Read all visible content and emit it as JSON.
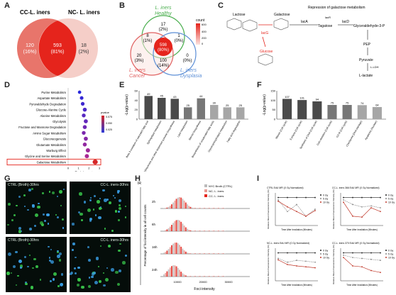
{
  "panels": {
    "a": "A",
    "b": "B",
    "c": "C",
    "d": "D",
    "e": "E",
    "f": "F",
    "g": "G",
    "h": "H",
    "i": "I"
  },
  "venn_a": {
    "left_title": "CC-L. iners",
    "right_title": "NC- L. iners",
    "left_only": {
      "count": "120",
      "pct": "(16%)"
    },
    "shared": {
      "count": "593",
      "pct": "(81%)"
    },
    "right_only": {
      "count": "18",
      "pct": "(2%)"
    }
  },
  "venn_b": {
    "healthy_label": "L. iners",
    "healthy_sub": "Healthy",
    "cancer_label": "L. iners",
    "cancer_sub": "Cancer",
    "dysplasia_label": "L. iners",
    "dysplasia_sub": "Dysplasia",
    "regions": {
      "healthy_only": [
        "17",
        "(2%)"
      ],
      "healthy_cancer": [
        "8",
        "(1%)"
      ],
      "healthy_dysplasia": [
        "1",
        "(0%)"
      ],
      "center": [
        "598",
        "(80%)"
      ],
      "cancer_only": [
        "20",
        "(3%)"
      ],
      "cancer_dysplasia": [
        "100",
        "(14%)"
      ],
      "dysplasia_only": [
        "0",
        "(0%)"
      ]
    },
    "legend_title": "count",
    "legend_ticks": [
      "600",
      "400",
      "200",
      "0"
    ]
  },
  "pathway_c": {
    "lactose": "Lactose",
    "galactose": "Galactose",
    "repression": "Repression of galactose metabolism",
    "lacR": "lacR",
    "lacA": "lacA",
    "lacD": "lacD",
    "lacG": "lacG",
    "glucose": "Glucose",
    "tagatose": "Tagatose",
    "glyceraldehyde": "Glyceraldehyde-3-P",
    "pep": "PEP",
    "pyruvate": "Pyruvate",
    "ldh": "L-LDH",
    "lactate": "L-lactate"
  },
  "dot_d": {
    "xlabel": "Enrichment",
    "highlight": "Galactose Metabolism",
    "legend_title": "pvalue",
    "legend_ticks": [
      "0.075",
      "0.050",
      "0.025"
    ],
    "chart_data": {
      "type": "scatter",
      "categories": [
        "Purine Metabolism",
        "Aspartate Metabolism",
        "Pyruvaldehyde Degradation",
        "Glucose-Alanine Cycle",
        "Alanine Metabolism",
        "Glycolysis",
        "Fructose and Mannose Degradation",
        "Amino Sugar Metabolism",
        "Gluconeogenesis",
        "Glutamate Metabolism",
        "Warburg Effect",
        "Glycine and Serine Metabolism",
        "Galactose Metabolism"
      ],
      "values": [
        1.1,
        1.3,
        1.4,
        1.6,
        1.5,
        1.7,
        1.6,
        1.5,
        1.7,
        1.6,
        1.9,
        1.8,
        2.6
      ],
      "xlim": [
        0,
        3
      ]
    }
  },
  "bar_e": {
    "ylabel": "-Log(p-value)",
    "chart_data": {
      "type": "bar",
      "categories": [
        "Beta 3-oxidation of saturated fatty acid",
        "Sphingolipid metabolism",
        "Ubiquinone and other terpenoid-quinone biosynthesis",
        "Lipid metabolism",
        "Steroid biosynthesis",
        "Biosynthesis of unsaturated fatty acids",
        "Glycerophospholipid metabolism",
        "Fatty acid degradation"
      ],
      "values": [
        49,
        45,
        43,
        25,
        44,
        30,
        25,
        25
      ],
      "ylim": [
        0,
        60
      ]
    }
  },
  "bar_f": {
    "ylabel": "-Log(p-value)",
    "chart_data": {
      "type": "bar",
      "categories": [
        "Mitosis (Cell cycle)",
        "S phase (Cell cycle)",
        "Synthesis of DNA (Cell cycle)",
        "Cyto-skeleton (Cell cycle)",
        "G2-M (Cell cycle)",
        "Checkpoint (DNA damage)",
        "Apoptosis (Nuclear)"
      ],
      "values": [
        107,
        101,
        94,
        75,
        75,
        74,
        64
      ],
      "ylim": [
        0,
        150
      ]
    }
  },
  "micro_g": {
    "captions": [
      "CTRL (Broth)-30hrs",
      "CC-L. iners-30hrs",
      "CTRL (Broth)-30hrs",
      "CC-L. iners-30hrs"
    ]
  },
  "hist_h": {
    "ir_label": "IR",
    "time_labels": [
      "2h",
      "6h",
      "16h",
      "24h"
    ],
    "xlabel": "Foci intensity",
    "ylabel": "Percentage of foci intensity in all cell counts",
    "legend": [
      "NYC Broth (CTRL)",
      "NC- L. iners",
      "CC- L. iners"
    ],
    "xticks": [
      "10000",
      "20000",
      "30000"
    ]
  },
  "lines_i": {
    "titles": [
      "CTRL EdU MFI (0 Gy Normalized)",
      "CC-L. iners 366 EdU MFI (0 Gy Normalized)",
      "NC-L. iners EdU MFI (0 Gy Normalized)",
      "CC-L. iners 370 EdU MFI (0 Gy Normalized)"
    ],
    "xlabel": "Time After Irradiation (Minutes)",
    "ylabel": "Relative Mean Fluorescence Intensity (%)",
    "legend": [
      "0 Gy",
      "5 Gy",
      "10 Gy"
    ],
    "colors": {
      "gy0": "#222222",
      "gy5": "#888888",
      "gy10": "#c0392b"
    }
  },
  "colors": {
    "red": "#e5241c",
    "pink": "#f4d5d0",
    "green": "#4caf50",
    "blue": "#5b8ed6"
  }
}
